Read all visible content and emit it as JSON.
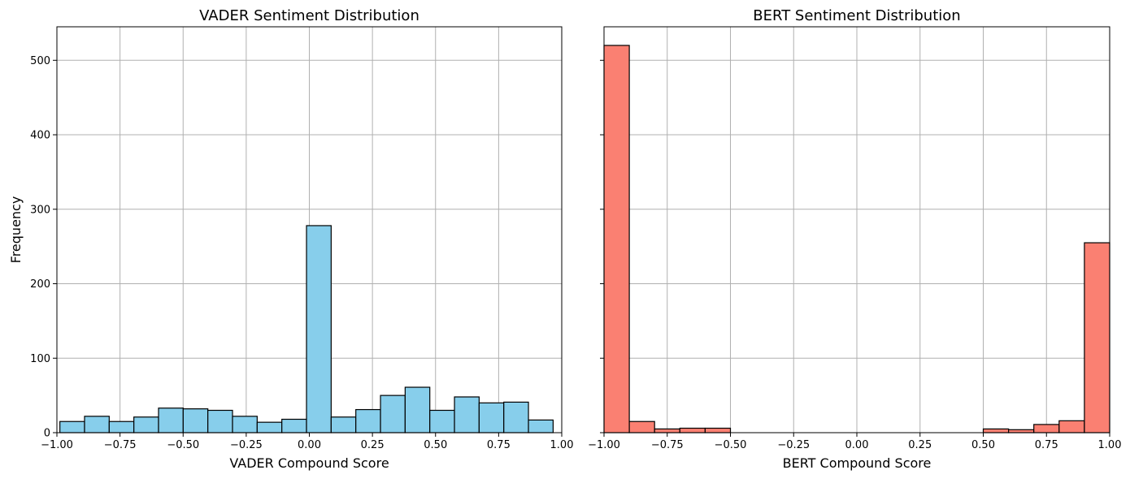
{
  "chart_data": [
    {
      "type": "bar",
      "title": "VADER Sentiment Distribution",
      "xlabel": "VADER Compound Score",
      "ylabel": "Frequency",
      "xlim": [
        -1.0,
        1.0
      ],
      "ylim": [
        0,
        545
      ],
      "grid": true,
      "color": "#87CEEB",
      "edgecolor": "#000000",
      "xticks": [
        "−1.00",
        "−0.75",
        "−0.50",
        "−0.25",
        "0.00",
        "0.25",
        "0.50",
        "0.75",
        "1.00"
      ],
      "yticks": [
        "0",
        "100",
        "200",
        "300",
        "400",
        "500"
      ],
      "bin_edges": [
        -0.9882,
        -0.8905,
        -0.7928,
        -0.6951,
        -0.5974,
        -0.4997,
        -0.402,
        -0.3043,
        -0.2066,
        -0.1089,
        -0.0112,
        0.0865,
        0.1842,
        0.2819,
        0.3796,
        0.4773,
        0.575,
        0.6727,
        0.7704,
        0.8681,
        0.9658
      ],
      "values": [
        15,
        22,
        15,
        21,
        33,
        32,
        30,
        22,
        14,
        18,
        278,
        21,
        31,
        50,
        61,
        30,
        48,
        40,
        41,
        17
      ]
    },
    {
      "type": "bar",
      "title": "BERT Sentiment Distribution",
      "xlabel": "BERT Compound Score",
      "ylabel": "",
      "xlim": [
        -1.0,
        1.0
      ],
      "ylim": [
        0,
        545
      ],
      "grid": true,
      "color": "#FA8072",
      "edgecolor": "#000000",
      "xticks": [
        "−1.00",
        "−0.75",
        "−0.50",
        "−0.25",
        "0.00",
        "0.25",
        "0.50",
        "0.75",
        "1.00"
      ],
      "yticks": [
        "",
        "",
        "",
        "",
        "",
        ""
      ],
      "bin_edges": [
        -1.0,
        -0.9,
        -0.8,
        -0.7,
        -0.6,
        -0.5,
        -0.4,
        -0.3,
        -0.2,
        -0.1,
        0.0,
        0.1,
        0.2,
        0.3,
        0.4,
        0.5,
        0.6,
        0.7,
        0.8,
        0.9,
        1.0
      ],
      "values": [
        520,
        15,
        5,
        6,
        6,
        0,
        0,
        0,
        0,
        0,
        0,
        0,
        0,
        0,
        0,
        5,
        4,
        11,
        16,
        255
      ]
    }
  ]
}
